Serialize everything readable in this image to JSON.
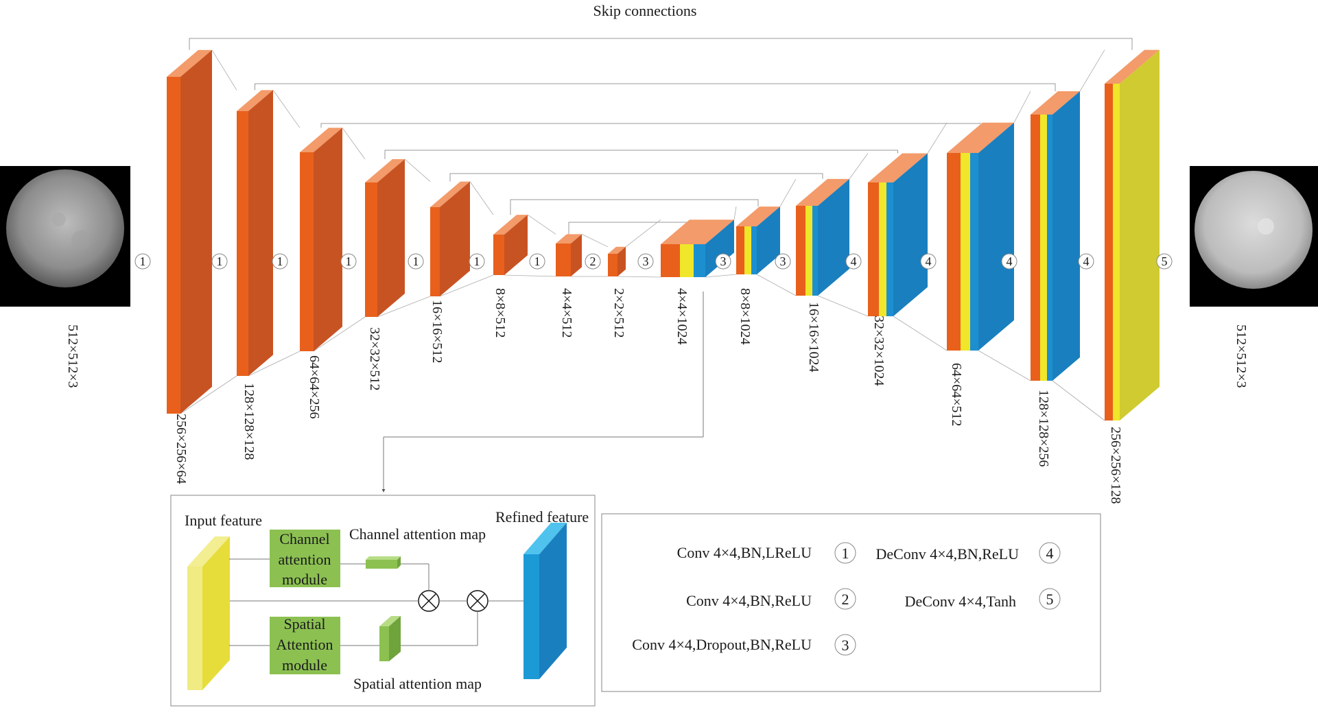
{
  "title": "Skip connections",
  "input_image": {
    "dim": "512×512×3"
  },
  "output_image": {
    "dim": "512×512×3"
  },
  "encoder_shapes": [
    "256×256×64",
    "128×128×128",
    "64×64×256",
    "32×32×512",
    "16×16×512",
    "8×8×512",
    "4×4×512",
    "2×2×512"
  ],
  "decoder_shapes": [
    "4×4×1024",
    "8×8×1024",
    "16×16×1024",
    "32×32×1024",
    "64×64×512",
    "128×128×256",
    "256×256×128"
  ],
  "op_markers": [
    "1",
    "1",
    "1",
    "1",
    "1",
    "1",
    "1",
    "2",
    "3",
    "3",
    "3",
    "4",
    "4",
    "4",
    "4",
    "5"
  ],
  "attention_module": {
    "input_feature": "Input feature",
    "refined_feature": "Refined feature",
    "channel_module": [
      "Channel",
      "attention",
      "module"
    ],
    "spatial_module": [
      "Spatial",
      "Attention",
      "module"
    ],
    "channel_map": "Channel attention map",
    "spatial_map": "Spatial attention map"
  },
  "legend": [
    {
      "num": "1",
      "text": "Conv 4×4,BN,LReLU"
    },
    {
      "num": "2",
      "text": "Conv 4×4,BN,ReLU"
    },
    {
      "num": "3",
      "text": "Conv 4×4,Dropout,BN,ReLU"
    },
    {
      "num": "4",
      "text": "DeConv 4×4,BN,ReLU"
    },
    {
      "num": "5",
      "text": "DeConv 4×4,Tanh"
    }
  ],
  "colors": {
    "orange": "#e8601c",
    "orange_side": "#c85322",
    "orange_top": "#f39b6a",
    "yellow": "#f0e62a",
    "blue": "#1c8fd0",
    "blue_side": "#1a7fbf",
    "green": "#8cc152"
  }
}
